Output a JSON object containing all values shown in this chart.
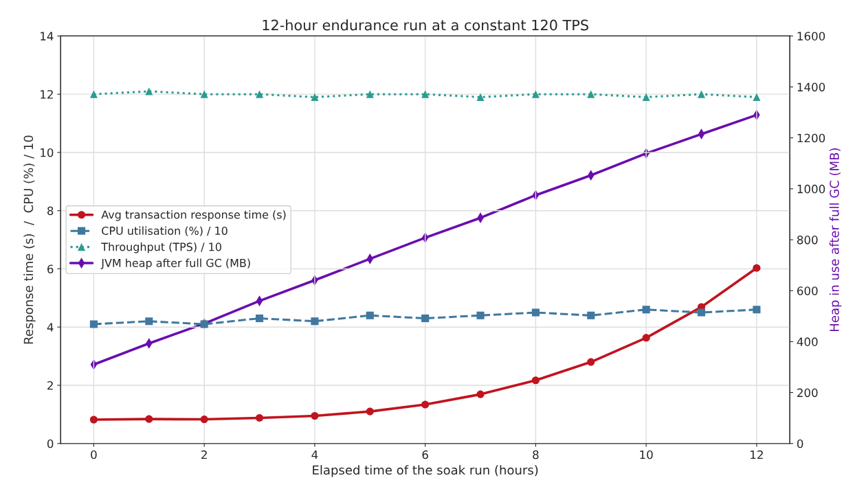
{
  "chart_data": {
    "type": "line",
    "title": "12-hour endurance run at a constant 120 TPS",
    "xlabel": "Elapsed time of the soak run (hours)",
    "ylabel": "Response time (s)  /  CPU (%) / 10",
    "y2label": "Heap in use after full GC (MB)",
    "x": [
      0,
      1,
      2,
      3,
      4,
      5,
      6,
      7,
      8,
      9,
      10,
      11,
      12
    ],
    "series": [
      {
        "name": "Avg transaction response time (s)",
        "color": "#c0141f",
        "marker": "circle",
        "line_style": "solid",
        "values": [
          0.82,
          0.84,
          0.83,
          0.88,
          0.95,
          1.1,
          1.34,
          1.69,
          2.17,
          2.8,
          3.63,
          4.69,
          6.03
        ]
      },
      {
        "name": "CPU utilisation (%) / 10",
        "color": "#41789f",
        "marker": "square",
        "line_style": "dashed",
        "values": [
          4.1,
          4.2,
          4.1,
          4.3,
          4.2,
          4.4,
          4.3,
          4.4,
          4.5,
          4.4,
          4.6,
          4.5,
          4.6
        ]
      },
      {
        "name": "Throughput (TPS) / 10",
        "color": "#2a9d8f",
        "marker": "triangle",
        "line_style": "dotted",
        "values": [
          12.0,
          12.1,
          12.0,
          12.0,
          11.9,
          12.0,
          12.0,
          11.9,
          12.0,
          12.0,
          11.9,
          12.0,
          11.9
        ]
      },
      {
        "name": "JVM heap after full GC (MB)",
        "color": "#6a0dad",
        "marker": "diamond",
        "line_style": "solid",
        "axis": "y2",
        "values": [
          310,
          393,
          471,
          560,
          641,
          725,
          808,
          886,
          975,
          1053,
          1139,
          1215,
          1290
        ]
      }
    ],
    "xlim": [
      -0.6,
      12.6
    ],
    "xticks": [
      0,
      2,
      4,
      6,
      8,
      10,
      12
    ],
    "ylim": [
      0,
      14
    ],
    "yticks": [
      0,
      2,
      4,
      6,
      8,
      10,
      12,
      14
    ],
    "y2lim": [
      0,
      1600
    ],
    "y2ticks": [
      0,
      200,
      400,
      600,
      800,
      1000,
      1200,
      1400,
      1600
    ],
    "grid": true,
    "legend": "left"
  }
}
